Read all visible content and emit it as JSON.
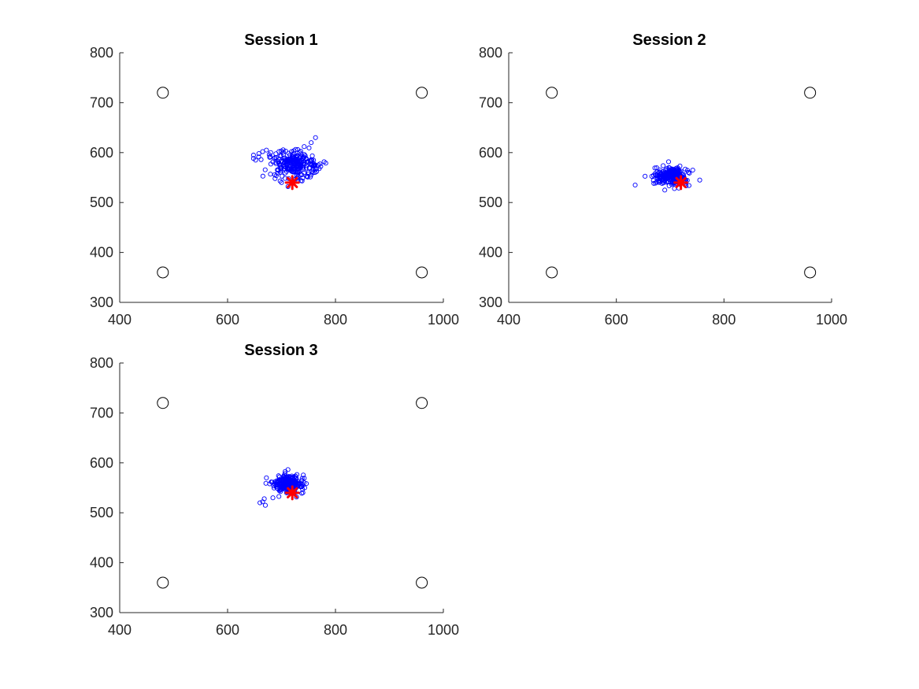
{
  "chart_data": [
    {
      "type": "scatter",
      "title": "Session 1",
      "xlim": [
        400,
        1000
      ],
      "ylim": [
        300,
        800
      ],
      "xticks": [
        400,
        600,
        800,
        1000
      ],
      "yticks": [
        300,
        400,
        500,
        600,
        700,
        800
      ],
      "grid": false,
      "colors": {
        "samples": "#0000ff",
        "target": "#ff0000",
        "corners": "#000000"
      },
      "corner_markers": {
        "x": [
          480,
          960,
          480,
          960
        ],
        "y": [
          720,
          720,
          360,
          360
        ]
      },
      "target": {
        "x": 720,
        "y": 540
      },
      "cluster": {
        "center_x": 725,
        "center_y": 577,
        "spread_x": 22,
        "spread_y": 13,
        "count": 260,
        "outliers": [
          {
            "x": 648,
            "y": 595
          },
          {
            "x": 652,
            "y": 585
          },
          {
            "x": 658,
            "y": 598
          },
          {
            "x": 665,
            "y": 602
          },
          {
            "x": 672,
            "y": 605
          },
          {
            "x": 680,
            "y": 600
          },
          {
            "x": 688,
            "y": 590
          },
          {
            "x": 763,
            "y": 630
          },
          {
            "x": 755,
            "y": 620
          },
          {
            "x": 742,
            "y": 612
          },
          {
            "x": 765,
            "y": 562
          },
          {
            "x": 700,
            "y": 540
          },
          {
            "x": 712,
            "y": 532
          },
          {
            "x": 730,
            "y": 545
          },
          {
            "x": 688,
            "y": 548
          }
        ]
      }
    },
    {
      "type": "scatter",
      "title": "Session 2",
      "xlim": [
        400,
        1000
      ],
      "ylim": [
        300,
        800
      ],
      "xticks": [
        400,
        600,
        800,
        1000
      ],
      "yticks": [
        300,
        400,
        500,
        600,
        700,
        800
      ],
      "grid": false,
      "colors": {
        "samples": "#0000ff",
        "target": "#ff0000",
        "corners": "#000000"
      },
      "corner_markers": {
        "x": [
          480,
          960,
          480,
          960
        ],
        "y": [
          720,
          720,
          360,
          360
        ]
      },
      "target": {
        "x": 720,
        "y": 540
      },
      "cluster": {
        "center_x": 703,
        "center_y": 553,
        "spread_x": 14,
        "spread_y": 10,
        "count": 260,
        "outliers": [
          {
            "x": 635,
            "y": 535
          },
          {
            "x": 755,
            "y": 545
          },
          {
            "x": 742,
            "y": 565
          },
          {
            "x": 672,
            "y": 558
          },
          {
            "x": 690,
            "y": 525
          },
          {
            "x": 708,
            "y": 528
          },
          {
            "x": 735,
            "y": 534
          }
        ]
      }
    },
    {
      "type": "scatter",
      "title": "Session 3",
      "xlim": [
        400,
        1000
      ],
      "ylim": [
        300,
        800
      ],
      "xticks": [
        400,
        600,
        800,
        1000
      ],
      "yticks": [
        300,
        400,
        500,
        600,
        700,
        800
      ],
      "grid": false,
      "colors": {
        "samples": "#0000ff",
        "target": "#ff0000",
        "corners": "#000000"
      },
      "corner_markers": {
        "x": [
          480,
          960,
          480,
          960
        ],
        "y": [
          720,
          720,
          360,
          360
        ]
      },
      "target": {
        "x": 720,
        "y": 540
      },
      "cluster": {
        "center_x": 713,
        "center_y": 558,
        "spread_x": 13,
        "spread_y": 8,
        "count": 260,
        "outliers": [
          {
            "x": 660,
            "y": 520
          },
          {
            "x": 665,
            "y": 522
          },
          {
            "x": 670,
            "y": 515
          },
          {
            "x": 668,
            "y": 528
          },
          {
            "x": 672,
            "y": 570
          },
          {
            "x": 743,
            "y": 550
          },
          {
            "x": 738,
            "y": 565
          },
          {
            "x": 684,
            "y": 530
          }
        ]
      }
    }
  ]
}
